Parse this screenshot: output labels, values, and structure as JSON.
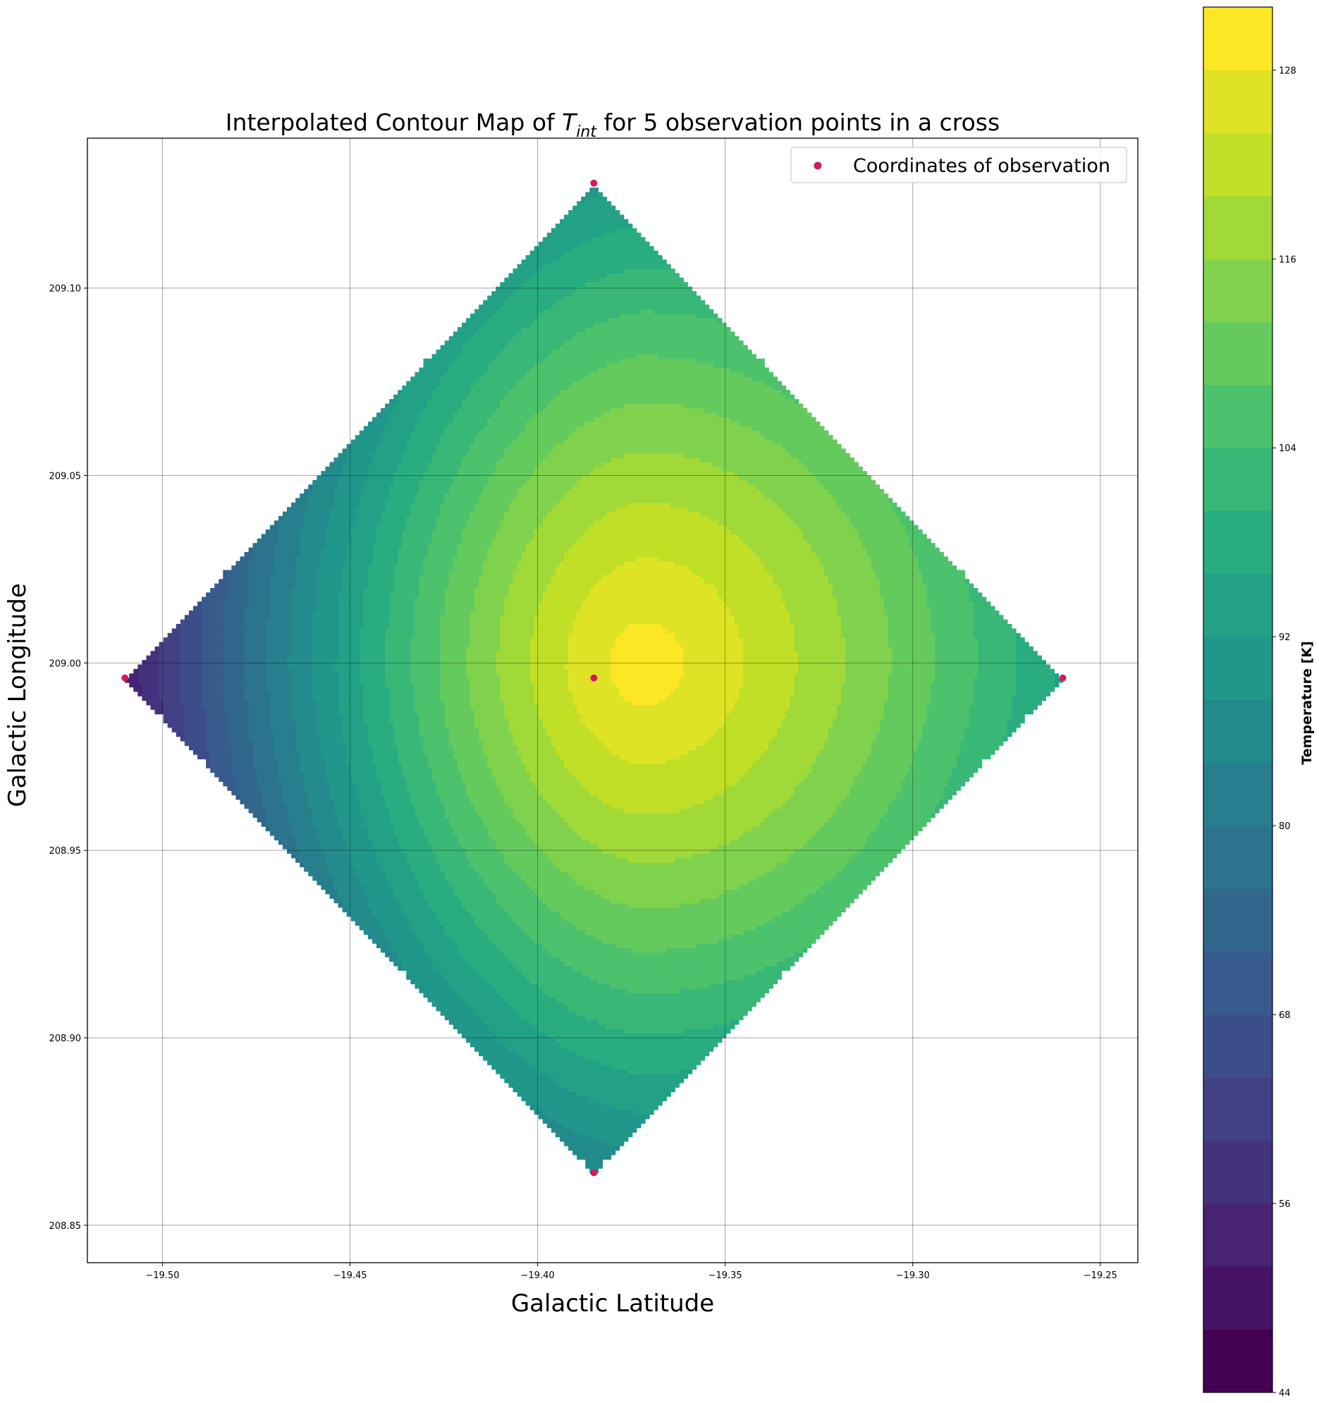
{
  "chart_data": {
    "type": "heatmap",
    "subtype": "filled-contour",
    "title_prefix": "Interpolated Contour Map of ",
    "title_math_main": "T",
    "title_math_sub": "int",
    "title_suffix": " for 5 observation points in a cross",
    "xlabel": "Galactic Latitude",
    "ylabel": "Galactic Longitude",
    "xlim": [
      -19.52,
      -19.24
    ],
    "ylim": [
      208.84,
      209.14
    ],
    "xticks": [
      -19.5,
      -19.45,
      -19.4,
      -19.35,
      -19.3,
      -19.25
    ],
    "xtick_labels": [
      "−19.50",
      "−19.45",
      "−19.40",
      "−19.35",
      "−19.30",
      "−19.25"
    ],
    "yticks": [
      208.85,
      208.9,
      208.95,
      209.0,
      209.05,
      209.1
    ],
    "ytick_labels": [
      "208.85",
      "208.90",
      "208.95",
      "209.00",
      "209.05",
      "209.10"
    ],
    "grid": true,
    "legend_position": "upper right",
    "observations": {
      "name": "Coordinates of observation",
      "color": "#d01c5b",
      "points": [
        {
          "x": -19.385,
          "y": 209.128
        },
        {
          "x": -19.51,
          "y": 208.996
        },
        {
          "x": -19.385,
          "y": 208.996
        },
        {
          "x": -19.26,
          "y": 208.996
        },
        {
          "x": -19.385,
          "y": 208.864
        }
      ]
    },
    "field": {
      "peak": {
        "x": -19.372,
        "y": 208.999,
        "value": 130
      },
      "west": {
        "x": -19.51,
        "y": 208.996,
        "value": 45
      },
      "north": {
        "x": -19.385,
        "y": 209.128,
        "value": 96
      },
      "south": {
        "x": -19.385,
        "y": 208.864,
        "value": 87
      },
      "east": {
        "x": -19.26,
        "y": 208.996,
        "value": 96
      }
    },
    "colorbar": {
      "label": "Temperature [K]",
      "range": [
        44,
        132
      ],
      "levels": [
        44,
        48,
        52,
        56,
        60,
        64,
        68,
        72,
        76,
        80,
        84,
        88,
        92,
        96,
        100,
        104,
        108,
        112,
        116,
        120,
        124,
        128,
        132
      ],
      "ticks": [
        44,
        56,
        68,
        80,
        92,
        104,
        116,
        128
      ],
      "colormap": "viridis"
    }
  }
}
